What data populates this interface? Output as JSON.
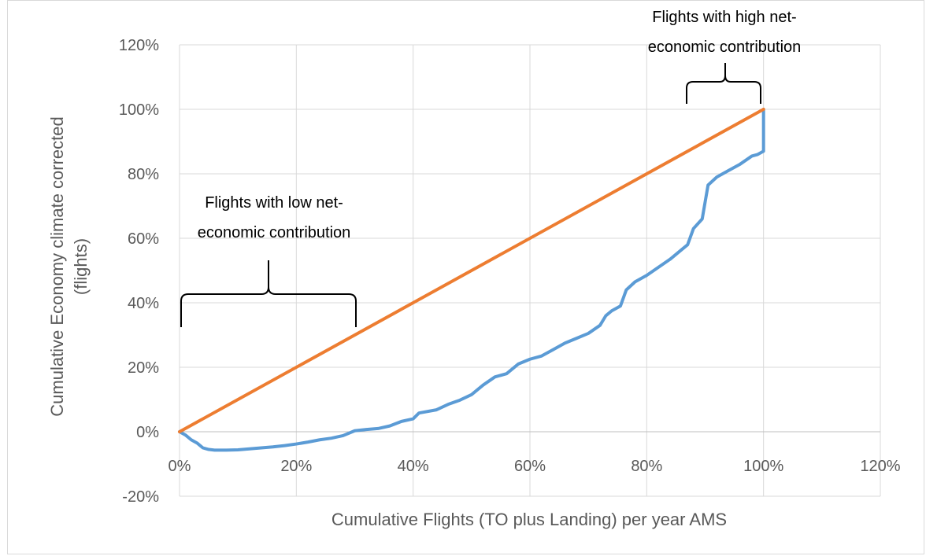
{
  "chart_data": {
    "type": "line",
    "xlabel": "Cumulative Flights  (TO plus Landing) per year AMS",
    "ylabel_lines": [
      "Cumulative Economy climate corrected",
      "(flights)"
    ],
    "xlim": [
      0,
      1.2
    ],
    "ylim": [
      -0.2,
      1.2
    ],
    "x_ticks": [
      0,
      0.2,
      0.4,
      0.6,
      0.8,
      1.0,
      1.2
    ],
    "x_tick_labels": [
      "0%",
      "20%",
      "40%",
      "60%",
      "80%",
      "100%",
      "120%"
    ],
    "y_ticks": [
      -0.2,
      0,
      0.2,
      0.4,
      0.6,
      0.8,
      1.0,
      1.2
    ],
    "y_tick_labels": [
      "-20%",
      "0%",
      "20%",
      "40%",
      "60%",
      "80%",
      "100%",
      "120%"
    ],
    "grid": true,
    "legend": "none",
    "series": [
      {
        "color": "#5b9bd5",
        "x": [
          0,
          0.01,
          0.02,
          0.03,
          0.04,
          0.05,
          0.06,
          0.08,
          0.1,
          0.12,
          0.14,
          0.16,
          0.18,
          0.2,
          0.22,
          0.24,
          0.26,
          0.28,
          0.3,
          0.32,
          0.34,
          0.36,
          0.38,
          0.4,
          0.41,
          0.44,
          0.46,
          0.48,
          0.5,
          0.52,
          0.54,
          0.56,
          0.58,
          0.6,
          0.62,
          0.64,
          0.66,
          0.68,
          0.7,
          0.72,
          0.73,
          0.74,
          0.755,
          0.765,
          0.78,
          0.8,
          0.82,
          0.84,
          0.86,
          0.87,
          0.88,
          0.895,
          0.905,
          0.92,
          0.94,
          0.96,
          0.98,
          0.99,
          1.0,
          1.0
        ],
        "y": [
          0,
          -0.01,
          -0.025,
          -0.035,
          -0.05,
          -0.055,
          -0.057,
          -0.057,
          -0.056,
          -0.053,
          -0.05,
          -0.047,
          -0.043,
          -0.038,
          -0.032,
          -0.025,
          -0.02,
          -0.012,
          0.003,
          0.007,
          0.01,
          0.018,
          0.032,
          0.04,
          0.058,
          0.068,
          0.085,
          0.098,
          0.115,
          0.145,
          0.17,
          0.18,
          0.21,
          0.225,
          0.235,
          0.255,
          0.275,
          0.29,
          0.305,
          0.33,
          0.36,
          0.375,
          0.39,
          0.44,
          0.465,
          0.485,
          0.51,
          0.535,
          0.565,
          0.58,
          0.63,
          0.66,
          0.765,
          0.79,
          0.81,
          0.83,
          0.855,
          0.86,
          0.87,
          1.0
        ]
      },
      {
        "color": "#ed7d31",
        "x": [
          0,
          1.0
        ],
        "y": [
          0,
          1.0
        ]
      }
    ],
    "annotations": [
      {
        "lines": [
          "Flights with high net-",
          "economic contribution"
        ],
        "bracket_x": [
          0.87,
          1.0
        ]
      },
      {
        "lines": [
          "Flights with low net-",
          "economic contribution"
        ],
        "bracket_x": [
          0.0,
          0.3
        ]
      }
    ]
  }
}
